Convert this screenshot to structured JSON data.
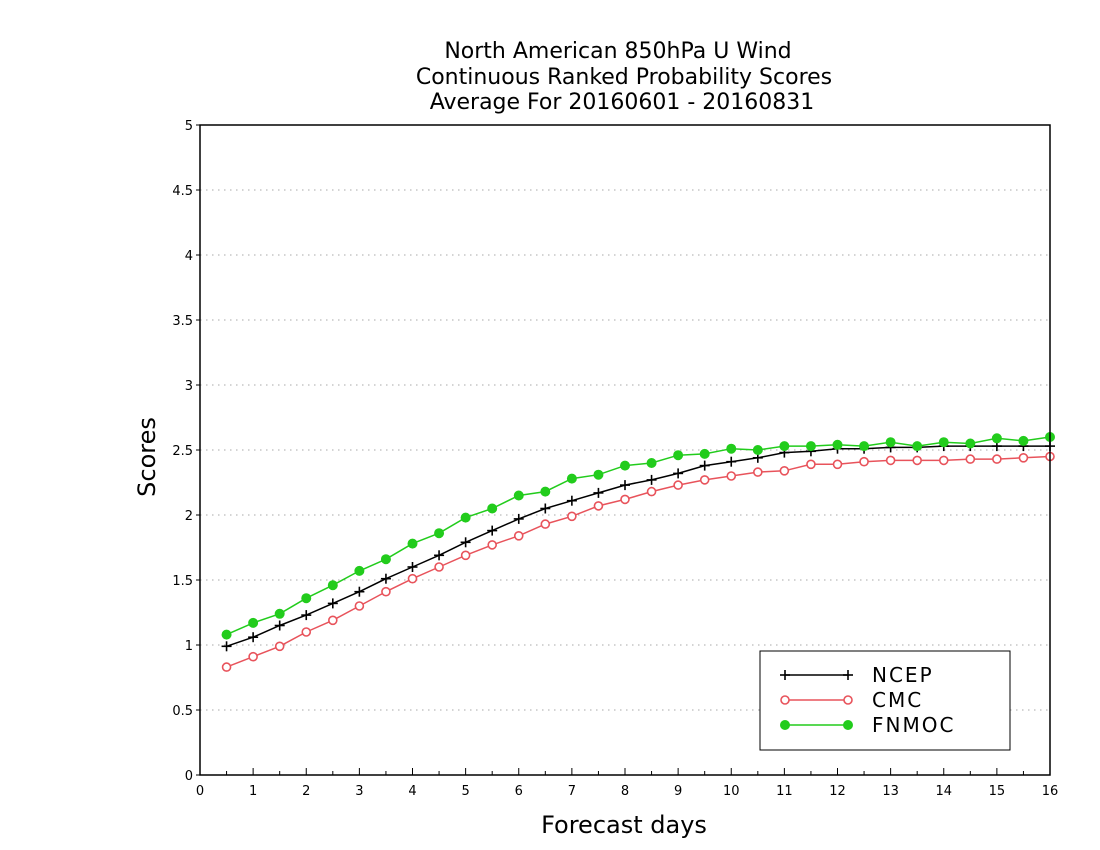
{
  "chart_data": {
    "type": "line",
    "title": [
      "North American 850hPa U Wind",
      "Continuous Ranked Probability Scores",
      "Average For 20160601 - 20160831"
    ],
    "xlabel": "Forecast days",
    "ylabel": "Scores",
    "xlim": [
      0,
      16
    ],
    "ylim": [
      0,
      5
    ],
    "xticks": [
      "0",
      "1",
      "2",
      "3",
      "4",
      "5",
      "6",
      "7",
      "8",
      "9",
      "10",
      "11",
      "12",
      "13",
      "14",
      "15",
      "16"
    ],
    "yticks": [
      "0",
      "0.5",
      "1",
      "1.5",
      "2",
      "2.5",
      "3",
      "3.5",
      "4",
      "4.5",
      "5"
    ],
    "grid": true,
    "legend_position": "bottom-right",
    "x": [
      0.5,
      1,
      1.5,
      2,
      2.5,
      3,
      3.5,
      4,
      4.5,
      5,
      5.5,
      6,
      6.5,
      7,
      7.5,
      8,
      8.5,
      9,
      9.5,
      10,
      10.5,
      11,
      11.5,
      12,
      12.5,
      13,
      13.5,
      14,
      14.5,
      15,
      15.5,
      16
    ],
    "series": [
      {
        "name": "NCEP",
        "color": "#000000",
        "marker": "plus",
        "values": [
          0.99,
          1.06,
          1.15,
          1.23,
          1.32,
          1.41,
          1.51,
          1.6,
          1.69,
          1.79,
          1.88,
          1.97,
          2.05,
          2.11,
          2.17,
          2.23,
          2.27,
          2.32,
          2.38,
          2.41,
          2.44,
          2.48,
          2.49,
          2.51,
          2.51,
          2.52,
          2.52,
          2.53,
          2.53,
          2.53,
          2.53,
          2.53
        ]
      },
      {
        "name": "CMC",
        "color": "#e8535b",
        "marker": "open-circle",
        "values": [
          0.83,
          0.91,
          0.99,
          1.1,
          1.19,
          1.3,
          1.41,
          1.51,
          1.6,
          1.69,
          1.77,
          1.84,
          1.93,
          1.99,
          2.07,
          2.12,
          2.18,
          2.23,
          2.27,
          2.3,
          2.33,
          2.34,
          2.39,
          2.39,
          2.41,
          2.42,
          2.42,
          2.42,
          2.43,
          2.43,
          2.44,
          2.45
        ]
      },
      {
        "name": "FNMOC",
        "color": "#22cc1c",
        "marker": "filled-circle",
        "values": [
          1.08,
          1.17,
          1.24,
          1.36,
          1.46,
          1.57,
          1.66,
          1.78,
          1.86,
          1.98,
          2.05,
          2.15,
          2.18,
          2.28,
          2.31,
          2.38,
          2.4,
          2.46,
          2.47,
          2.51,
          2.5,
          2.53,
          2.53,
          2.54,
          2.53,
          2.56,
          2.53,
          2.56,
          2.55,
          2.59,
          2.57,
          2.6
        ]
      }
    ]
  }
}
